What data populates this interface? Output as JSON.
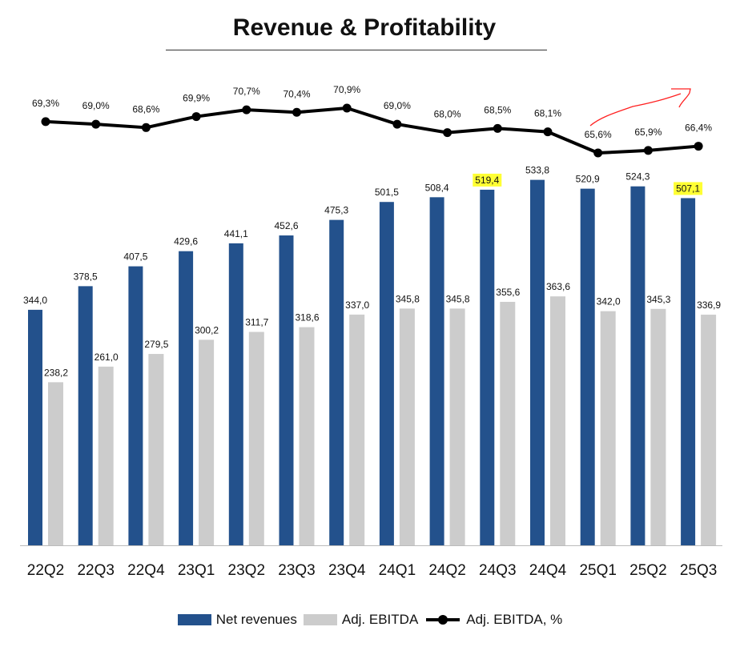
{
  "chart_data": {
    "type": "bar+line",
    "title": "Revenue & Profitability",
    "categories": [
      "22Q2",
      "22Q3",
      "22Q4",
      "23Q1",
      "23Q2",
      "23Q3",
      "23Q4",
      "24Q1",
      "24Q2",
      "24Q3",
      "24Q4",
      "25Q1",
      "25Q2",
      "25Q3"
    ],
    "series": [
      {
        "name": "Net revenues",
        "type": "bar",
        "color": "#23518C",
        "values": [
          344.0,
          378.5,
          407.5,
          429.6,
          441.1,
          452.6,
          475.3,
          501.5,
          508.4,
          519.4,
          533.8,
          520.9,
          524.3,
          507.1
        ],
        "labels": [
          "344,0",
          "378,5",
          "407,5",
          "429,6",
          "441,1",
          "452,6",
          "475,3",
          "501,5",
          "508,4",
          "519,4",
          "533,8",
          "520,9",
          "524,3",
          "507,1"
        ]
      },
      {
        "name": "Adj. EBITDA",
        "type": "bar",
        "color": "#CCCCCC",
        "values": [
          238.2,
          261.0,
          279.5,
          300.2,
          311.7,
          318.6,
          337.0,
          345.8,
          345.8,
          355.6,
          363.6,
          342.0,
          345.3,
          336.9
        ],
        "labels": [
          "238,2",
          "261,0",
          "279,5",
          "300,2",
          "311,7",
          "318,6",
          "337,0",
          "345,8",
          "345,8",
          "355,6",
          "363,6",
          "342,0",
          "345,3",
          "336,9"
        ]
      },
      {
        "name": "Adj. EBITDA, %",
        "type": "line",
        "color": "#000000",
        "values": [
          69.3,
          69.0,
          68.6,
          69.9,
          70.7,
          70.4,
          70.9,
          69.0,
          68.0,
          68.5,
          68.1,
          65.6,
          65.9,
          66.4
        ],
        "labels": [
          "69,3%",
          "69,0%",
          "68,6%",
          "69,9%",
          "70,7%",
          "70,4%",
          "70,9%",
          "69,0%",
          "68,0%",
          "68,5%",
          "68,1%",
          "65,6%",
          "65,9%",
          "66,4%"
        ]
      }
    ],
    "highlighted_labels": [
      "519,4",
      "507,1"
    ],
    "highlight_color": "#FFFF33",
    "annotation_color": "#FF0000",
    "legend_position": "bottom",
    "grid": false
  }
}
